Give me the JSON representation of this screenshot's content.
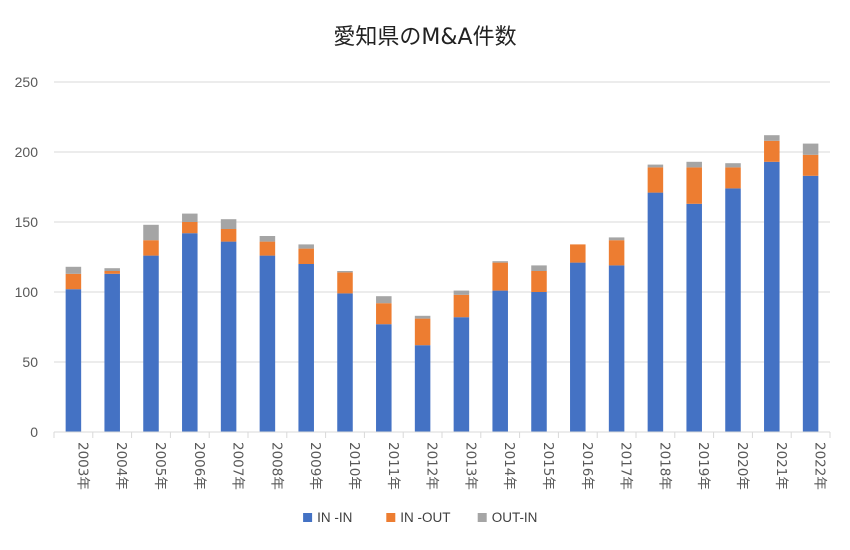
{
  "chart_data": {
    "type": "bar",
    "stacked": true,
    "title": "愛知県のM&A件数",
    "categories": [
      "2003年",
      "2004年",
      "2005年",
      "2006年",
      "2007年",
      "2008年",
      "2009年",
      "2010年",
      "2011年",
      "2012年",
      "2013年",
      "2014年",
      "2015年",
      "2016年",
      "2017年",
      "2018年",
      "2019年",
      "2020年",
      "2021年",
      "2022年"
    ],
    "series": [
      {
        "name": "IN -IN",
        "color": "#4472C4",
        "values": [
          102,
          113,
          126,
          142,
          136,
          126,
          120,
          99,
          77,
          62,
          82,
          101,
          100,
          121,
          119,
          171,
          163,
          174,
          193,
          183
        ]
      },
      {
        "name": "IN -OUT",
        "color": "#ED7D31",
        "values": [
          11,
          2,
          11,
          8,
          9,
          10,
          11,
          15,
          15,
          19,
          16,
          20,
          15,
          13,
          18,
          18,
          26,
          15,
          15,
          15
        ]
      },
      {
        "name": "OUT-IN",
        "color": "#A5A5A5",
        "values": [
          5,
          2,
          11,
          6,
          7,
          4,
          3,
          1,
          5,
          2,
          3,
          1,
          4,
          0,
          2,
          2,
          4,
          3,
          4,
          8
        ]
      }
    ],
    "ylim": [
      0,
      250
    ],
    "yticks": [
      0,
      50,
      100,
      150,
      200,
      250
    ],
    "grid": true,
    "legend": "bottom"
  }
}
